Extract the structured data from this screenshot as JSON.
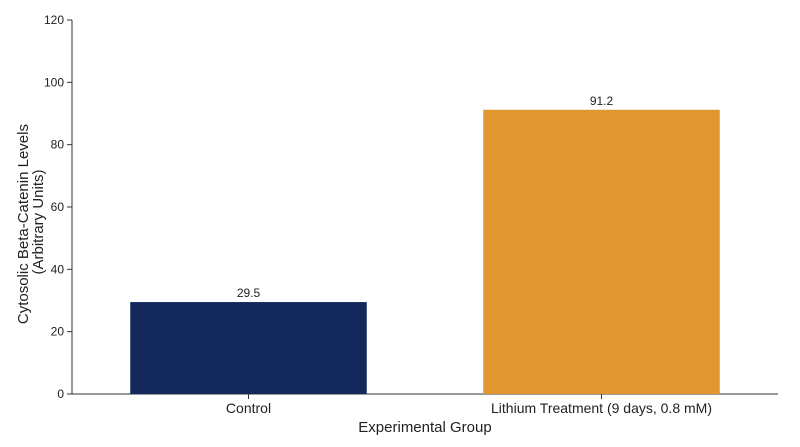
{
  "chart_data": {
    "type": "bar",
    "categories": [
      "Control",
      "Lithium Treatment (9 days, 0.8 mM)"
    ],
    "values": [
      29.5,
      91.2
    ],
    "data_labels": [
      "29.5",
      "91.2"
    ],
    "bar_colors": [
      "#13295b",
      "#e1972f"
    ],
    "title": "",
    "xlabel": "Experimental Group",
    "ylabel_lines": [
      "Cytosolic Beta-Catenin Levels",
      "(Arbitrary Units)"
    ],
    "ylim": [
      0,
      120
    ],
    "yticks": [
      0,
      20,
      40,
      60,
      80,
      100,
      120
    ],
    "grid": false,
    "legend": "none"
  }
}
